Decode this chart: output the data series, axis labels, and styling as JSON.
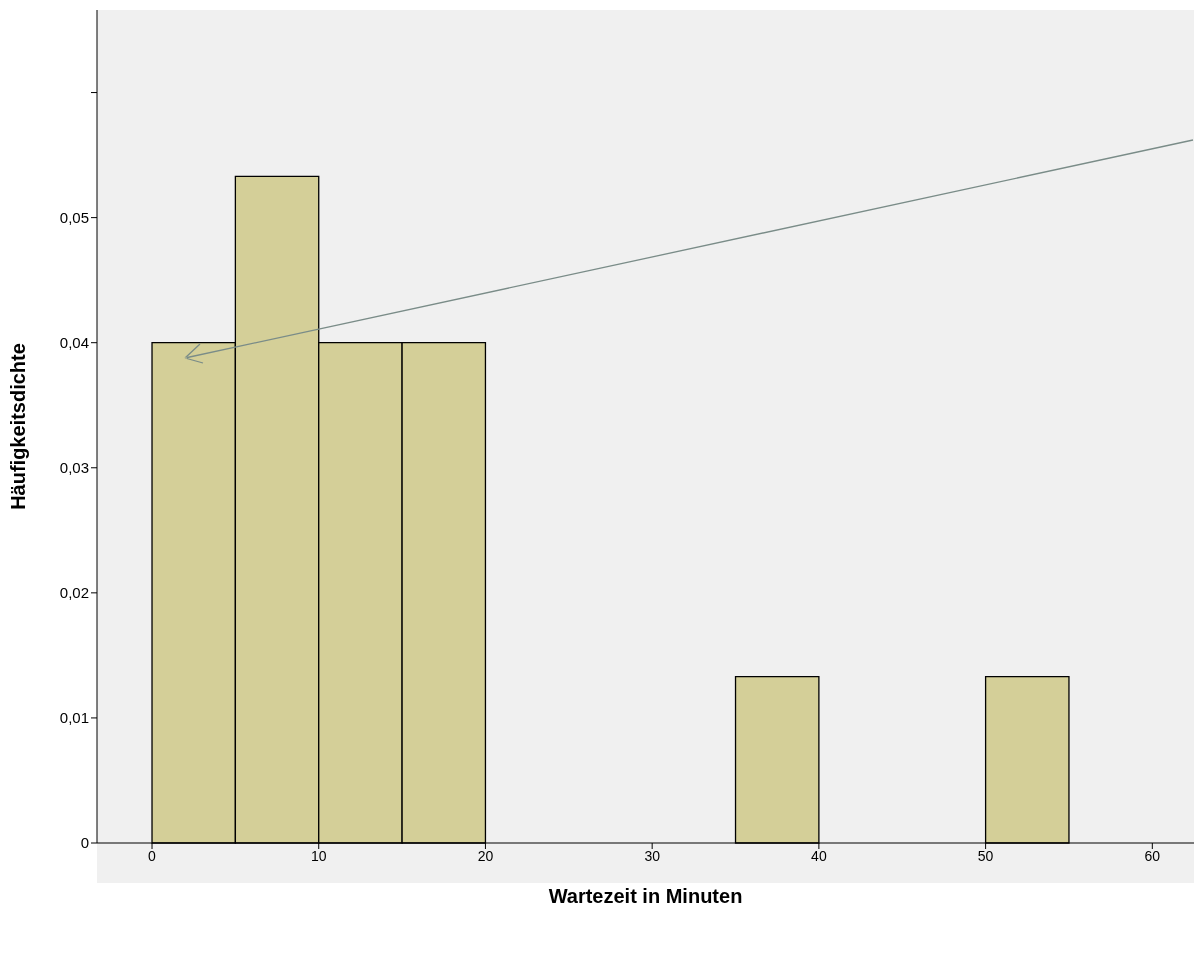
{
  "chart_data": {
    "type": "histogram",
    "xlabel": "Wartezeit in Minuten",
    "ylabel": "Häufigkeitsdichte",
    "bins": [
      0,
      5,
      10,
      15,
      20,
      25,
      30,
      35,
      40,
      45,
      50,
      55
    ],
    "values": [
      0.04,
      0.0533,
      0.04,
      0.04,
      0,
      0,
      0,
      0.0133,
      0,
      0,
      0.0133
    ],
    "color": "#d4cf98",
    "xlim": [
      -3.3,
      62.5
    ],
    "xticks": [
      0,
      10,
      20,
      30,
      40,
      50,
      60
    ],
    "ylim": [
      0,
      0.0666
    ],
    "yticks": [
      0,
      {
        "value": 0.01,
        "label": "0,01"
      },
      {
        "value": 0.02,
        "label": "0,02"
      },
      {
        "value": 0.03,
        "label": "0,03"
      },
      {
        "value": 0.04,
        "label": "0,04"
      },
      {
        "value": 0.05,
        "label": "0,05"
      },
      {
        "value": 0.06,
        "label": null
      }
    ],
    "grid": false
  }
}
